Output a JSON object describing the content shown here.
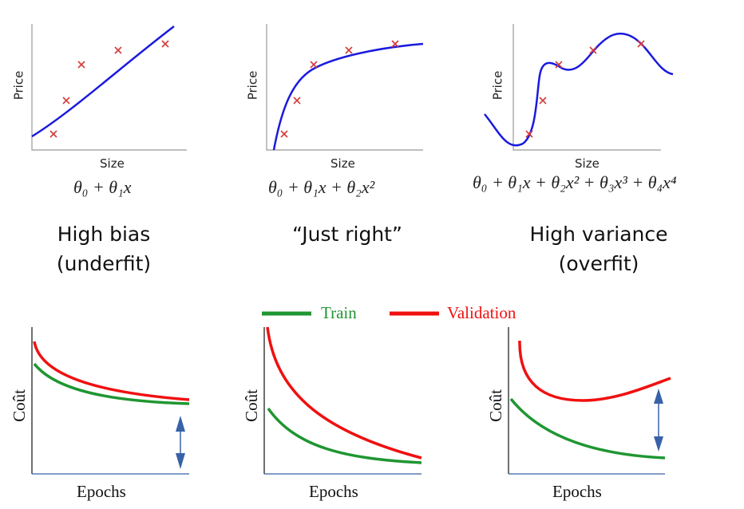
{
  "colors": {
    "fit_curve": "#1a1adf",
    "points": "#d43a3a",
    "train": "#1f9632",
    "validation": "#f01010",
    "arrow": "#3862a8",
    "axis_bottom": "#3862a8"
  },
  "top_panels": [
    {
      "ylabel": "Price",
      "xlabel": "Size",
      "formula": "θ₀ + θ₁x",
      "title_line1": "High bias",
      "title_line2": "(underfit)"
    },
    {
      "ylabel": "Price",
      "xlabel": "Size",
      "formula": "θ₀ + θ₁x + θ₂x²",
      "title_line1": "“Just right”",
      "title_line2": ""
    },
    {
      "ylabel": "Price",
      "xlabel": "Size",
      "formula": "θ₀ + θ₁x + θ₂x² + θ₃x³ + θ₄x⁴",
      "title_line1": "High variance",
      "title_line2": "(overfit)"
    }
  ],
  "legend": {
    "train": "Train",
    "validation": "Validation"
  },
  "bottom_panels": [
    {
      "ylabel": "Coût",
      "xlabel": "Epochs"
    },
    {
      "ylabel": "Coût",
      "xlabel": "Epochs"
    },
    {
      "ylabel": "Coût",
      "xlabel": "Epochs"
    }
  ]
}
